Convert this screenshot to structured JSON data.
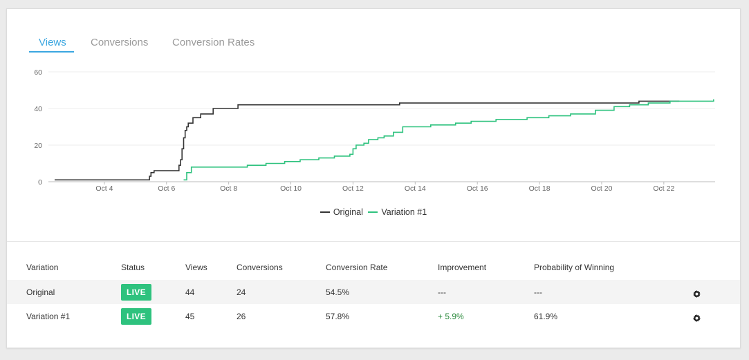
{
  "tabs": [
    {
      "label": "Views",
      "active": true
    },
    {
      "label": "Conversions",
      "active": false
    },
    {
      "label": "Conversion Rates",
      "active": false
    }
  ],
  "chart_data": {
    "type": "line",
    "ylim": [
      0,
      60
    ],
    "yticks": [
      0,
      20,
      40,
      60
    ],
    "xlim": [
      2.2,
      23.65
    ],
    "x_tick_labels": [
      "Oct 4",
      "Oct 6",
      "Oct 8",
      "Oct 10",
      "Oct 12",
      "Oct 14",
      "Oct 16",
      "Oct 18",
      "Oct 20",
      "Oct 22"
    ],
    "x_tick_values": [
      4,
      6,
      8,
      10,
      12,
      14,
      16,
      18,
      20,
      22
    ],
    "grid": true,
    "legend_position": "bottom",
    "series": [
      {
        "name": "Original",
        "color": "#333333",
        "points": [
          [
            2.4,
            1
          ],
          [
            5.3,
            1
          ],
          [
            5.45,
            3
          ],
          [
            5.5,
            5
          ],
          [
            5.6,
            6
          ],
          [
            6.35,
            6
          ],
          [
            6.4,
            9
          ],
          [
            6.45,
            12
          ],
          [
            6.5,
            18
          ],
          [
            6.55,
            24
          ],
          [
            6.6,
            28
          ],
          [
            6.65,
            30
          ],
          [
            6.7,
            32
          ],
          [
            6.85,
            35
          ],
          [
            7.1,
            37
          ],
          [
            7.5,
            40
          ],
          [
            8.3,
            42
          ],
          [
            13.5,
            43
          ],
          [
            21.2,
            44
          ],
          [
            22.5,
            44
          ]
        ]
      },
      {
        "name": "Variation #1",
        "color": "#2ec27e",
        "points": [
          [
            6.55,
            1
          ],
          [
            6.65,
            5
          ],
          [
            6.8,
            8
          ],
          [
            8.6,
            9
          ],
          [
            9.2,
            10
          ],
          [
            9.8,
            11
          ],
          [
            10.3,
            12
          ],
          [
            10.9,
            13
          ],
          [
            11.4,
            14
          ],
          [
            11.9,
            15
          ],
          [
            12.0,
            18
          ],
          [
            12.1,
            20
          ],
          [
            12.35,
            21
          ],
          [
            12.5,
            23
          ],
          [
            12.8,
            24
          ],
          [
            13.0,
            25
          ],
          [
            13.3,
            27
          ],
          [
            13.6,
            30
          ],
          [
            14.5,
            31
          ],
          [
            15.3,
            32
          ],
          [
            15.8,
            33
          ],
          [
            16.6,
            34
          ],
          [
            17.6,
            35
          ],
          [
            18.3,
            36
          ],
          [
            19.0,
            37
          ],
          [
            19.8,
            39
          ],
          [
            20.4,
            41
          ],
          [
            20.9,
            42
          ],
          [
            21.5,
            43
          ],
          [
            22.2,
            44
          ],
          [
            23.6,
            45
          ]
        ]
      }
    ]
  },
  "legend": [
    {
      "label": "Original",
      "color": "#333333"
    },
    {
      "label": "Variation #1",
      "color": "#2ec27e"
    }
  ],
  "table": {
    "headers": [
      "Variation",
      "Status",
      "Views",
      "Conversions",
      "Conversion Rate",
      "Improvement",
      "Probability of Winning"
    ],
    "rows": [
      {
        "variation": "Original",
        "status": "LIVE",
        "views": "44",
        "conversions": "24",
        "rate": "54.5%",
        "improvement": "---",
        "probability": "---"
      },
      {
        "variation": "Variation #1",
        "status": "LIVE",
        "views": "45",
        "conversions": "26",
        "rate": "57.8%",
        "improvement": "+ 5.9%",
        "probability": "61.9%"
      }
    ]
  }
}
